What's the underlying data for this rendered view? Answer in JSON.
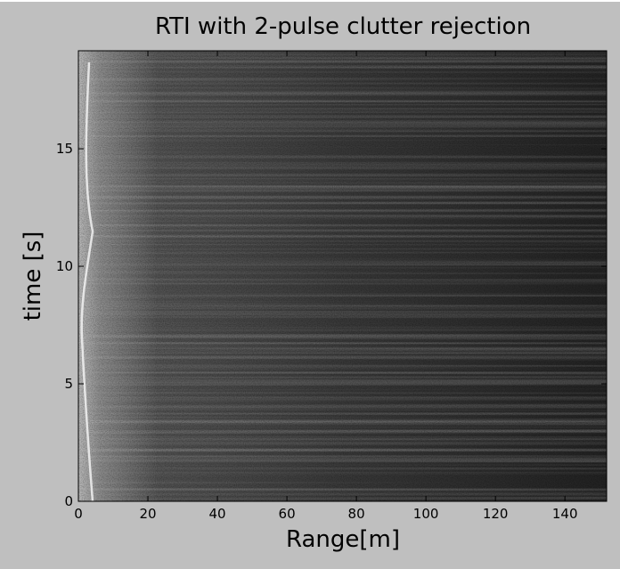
{
  "chart_data": {
    "type": "heatmap",
    "title": "RTI with 2-pulse clutter rejection",
    "x_label": "Range[m]",
    "y_label": "time [s]",
    "xlim": [
      0,
      152
    ],
    "ylim": [
      0,
      19.17
    ],
    "xticks": [
      0,
      20,
      40,
      60,
      80,
      100,
      120,
      140
    ],
    "yticks": [
      0,
      5,
      10,
      15
    ],
    "colormap": "gray"
  }
}
